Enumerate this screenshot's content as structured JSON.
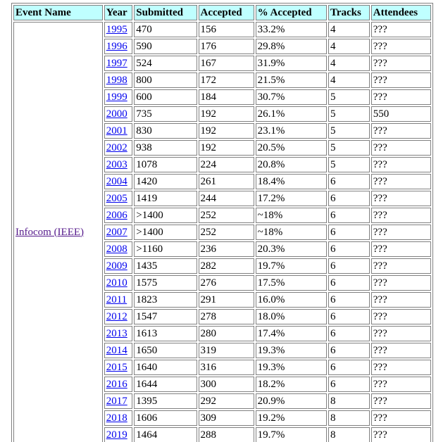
{
  "headers": {
    "event": "Event Name",
    "year": "Year",
    "submitted": "Submitted",
    "accepted": "Accepted",
    "pct": "% Accepted",
    "tracks": "Tracks",
    "attendees": "Attendees"
  },
  "event_name": "Infocom (IEEE)",
  "rows": [
    {
      "year": "1995",
      "submitted": "470",
      "accepted": "156",
      "pct": "33.2%",
      "tracks": "4",
      "attendees": "???"
    },
    {
      "year": "1996",
      "submitted": "590",
      "accepted": "176",
      "pct": "29.8%",
      "tracks": "4",
      "attendees": "???"
    },
    {
      "year": "1997",
      "submitted": "524",
      "accepted": "167",
      "pct": "31.9%",
      "tracks": "4",
      "attendees": "???"
    },
    {
      "year": "1998",
      "submitted": "800",
      "accepted": "172",
      "pct": "21.5%",
      "tracks": "4",
      "attendees": "???"
    },
    {
      "year": "1999",
      "submitted": "600",
      "accepted": "184",
      "pct": "30.7%",
      "tracks": "5",
      "attendees": "???"
    },
    {
      "year": "2000",
      "submitted": "735",
      "accepted": "192",
      "pct": "26.1%",
      "tracks": "5",
      "attendees": "550"
    },
    {
      "year": "2001",
      "submitted": "830",
      "accepted": "192",
      "pct": "23.1%",
      "tracks": "5",
      "attendees": "???"
    },
    {
      "year": "2002",
      "submitted": "938",
      "accepted": "192",
      "pct": "20.5%",
      "tracks": "5",
      "attendees": "???"
    },
    {
      "year": "2003",
      "submitted": "1078",
      "accepted": "224",
      "pct": "20.8%",
      "tracks": "5",
      "attendees": "???"
    },
    {
      "year": "2004",
      "submitted": "1420",
      "accepted": "261",
      "pct": "18.4%",
      "tracks": "6",
      "attendees": "???"
    },
    {
      "year": "2005",
      "submitted": "1419",
      "accepted": "244",
      "pct": "17.2%",
      "tracks": "6",
      "attendees": "???"
    },
    {
      "year": "2006",
      "submitted": ">1400",
      "accepted": "252",
      "pct": "~18%",
      "tracks": "6",
      "attendees": "???"
    },
    {
      "year": "2007",
      "submitted": ">1400",
      "accepted": "252",
      "pct": "~18%",
      "tracks": "6",
      "attendees": "???"
    },
    {
      "year": "2008",
      "submitted": ">1160",
      "accepted": "236",
      "pct": "20.3%",
      "tracks": "6",
      "attendees": "???"
    },
    {
      "year": "2009",
      "submitted": "1435",
      "accepted": "282",
      "pct": "19.7%",
      "tracks": "6",
      "attendees": "???"
    },
    {
      "year": "2010",
      "submitted": "1575",
      "accepted": "276",
      "pct": "17.5%",
      "tracks": "6",
      "attendees": "???"
    },
    {
      "year": "2011",
      "submitted": "1823",
      "accepted": "291",
      "pct": "16.0%",
      "tracks": "6",
      "attendees": "???"
    },
    {
      "year": "2012",
      "submitted": "1547",
      "accepted": "278",
      "pct": "18.0%",
      "tracks": "6",
      "attendees": "???"
    },
    {
      "year": "2013",
      "submitted": "1613",
      "accepted": "280",
      "pct": "17.4%",
      "tracks": "6",
      "attendees": "???"
    },
    {
      "year": "2014",
      "submitted": "1650",
      "accepted": "319",
      "pct": "19.3%",
      "tracks": "6",
      "attendees": "???"
    },
    {
      "year": "2015",
      "submitted": "1640",
      "accepted": "316",
      "pct": "19.3%",
      "tracks": "6",
      "attendees": "???"
    },
    {
      "year": "2016",
      "submitted": "1644",
      "accepted": "300",
      "pct": "18.2%",
      "tracks": "6",
      "attendees": "???"
    },
    {
      "year": "2017",
      "submitted": "1395",
      "accepted": "292",
      "pct": "20.9%",
      "tracks": "8",
      "attendees": "???"
    },
    {
      "year": "2018",
      "submitted": "1606",
      "accepted": "309",
      "pct": "19.2%",
      "tracks": "8",
      "attendees": "???"
    },
    {
      "year": "2019",
      "submitted": "1464",
      "accepted": "288",
      "pct": "19.7%",
      "tracks": "8",
      "attendees": "???"
    }
  ],
  "colors": {
    "header_bg": "#bfffff",
    "link": "#0000ee",
    "visited_link": "#551a8b",
    "border": "#808080"
  }
}
